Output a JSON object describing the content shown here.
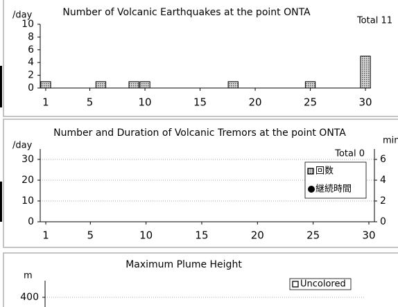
{
  "chart_data": [
    {
      "type": "bar",
      "title": "Number of Volcanic Earthquakes at the point ONTA",
      "y_label": "/day",
      "total": "Total 11",
      "x": [
        1,
        6,
        9,
        10,
        18,
        25,
        30
      ],
      "values": [
        1,
        1,
        1,
        1,
        1,
        1,
        5
      ],
      "xlim": [
        0.5,
        30.5
      ],
      "xticks": [
        1,
        5,
        10,
        15,
        20,
        25,
        30
      ],
      "ylim": [
        0,
        10
      ],
      "yticks": [
        0,
        2,
        4,
        6,
        8,
        10
      ],
      "grid": false
    },
    {
      "type": "bar",
      "title": "Number and Duration of Volcanic Tremors at the point ONTA",
      "y_label": "/day",
      "y2_label": "min",
      "total": "Total 0",
      "x": [],
      "series": [
        {
          "name": "回数",
          "values": []
        },
        {
          "name": "継続時間",
          "axis": "y2",
          "values": []
        }
      ],
      "xlim": [
        0.5,
        30.5
      ],
      "xticks": [
        1,
        5,
        10,
        15,
        20,
        25,
        30
      ],
      "ylim": [
        0,
        35
      ],
      "yticks": [
        0,
        10,
        20,
        30
      ],
      "y2lim": [
        0,
        7
      ],
      "y2ticks": [
        0,
        2,
        4,
        6
      ],
      "grid": true
    },
    {
      "type": "bar",
      "title": "Maximum Plume Height",
      "y_label": "m",
      "x": [],
      "series": [
        {
          "name": "Uncolored",
          "values": []
        }
      ],
      "ylim": [
        0,
        500
      ],
      "yticks": [
        400
      ],
      "grid": true
    }
  ]
}
